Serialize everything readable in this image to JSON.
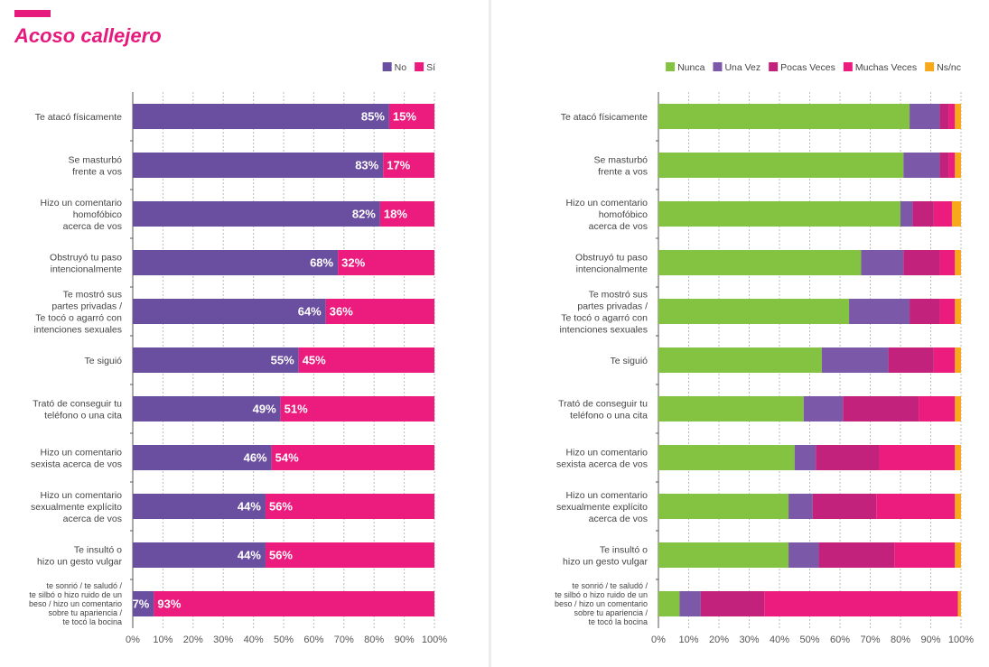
{
  "title": "Acoso callejero",
  "colors": {
    "accent": "#e6197d",
    "no": "#6a4fa0",
    "si": "#ec1c7f",
    "nunca": "#84c341",
    "una_vez": "#7b58a8",
    "pocas_veces": "#c2227c",
    "muchas_veces": "#ec1c7f",
    "nsnc": "#f7a81b"
  },
  "chart_data": [
    {
      "type": "bar",
      "orientation": "horizontal",
      "stacked": true,
      "categories": [
        [
          "Te atacó físicamente"
        ],
        [
          "Se masturbó",
          "frente a vos"
        ],
        [
          "Hizo un comentario",
          "homofóbico",
          "acerca de vos"
        ],
        [
          "Obstruyó tu paso",
          "intencionalmente"
        ],
        [
          "Te mostró sus",
          "partes privadas /",
          "Te tocó o agarró con",
          "intenciones sexuales"
        ],
        [
          "Te siguió"
        ],
        [
          "Trató de conseguir tu",
          "teléfono o una cita"
        ],
        [
          "Hizo un comentario",
          "sexista acerca de vos"
        ],
        [
          "Hizo un comentario",
          "sexualmente explícito",
          "acerca de vos"
        ],
        [
          "Te insultó o",
          "hizo un gesto vulgar"
        ],
        [
          "te sonrió / te saludó /",
          "te silbó o hizo ruido de un",
          "beso / hizo un comentario",
          "sobre tu apariencia /",
          "te tocó la bocina"
        ]
      ],
      "series": [
        {
          "name": "No",
          "color_key": "no",
          "values": [
            85,
            83,
            82,
            68,
            64,
            55,
            49,
            46,
            44,
            44,
            7
          ]
        },
        {
          "name": "Sí",
          "color_key": "si",
          "values": [
            15,
            17,
            18,
            32,
            36,
            45,
            51,
            54,
            56,
            56,
            93
          ]
        }
      ],
      "data_labels": true,
      "legend": [
        "No",
        "Sí"
      ],
      "legend_position": "top-right",
      "xlim": [
        0,
        100
      ],
      "xticks": [
        "0%",
        "10%",
        "20%",
        "30%",
        "40%",
        "50%",
        "60%",
        "70%",
        "80%",
        "90%",
        "100%"
      ]
    },
    {
      "type": "bar",
      "orientation": "horizontal",
      "stacked": true,
      "categories": [
        [
          "Te atacó físicamente"
        ],
        [
          "Se masturbó",
          "frente a vos"
        ],
        [
          "Hizo un comentario",
          "homofóbico",
          "acerca de vos"
        ],
        [
          "Obstruyó tu paso",
          "intencionalmente"
        ],
        [
          "Te mostró sus",
          "partes privadas /",
          "Te tocó o agarró con",
          "intenciones sexuales"
        ],
        [
          "Te siguió"
        ],
        [
          "Trató de conseguir tu",
          "teléfono o una cita"
        ],
        [
          "Hizo un comentario",
          "sexista acerca de vos"
        ],
        [
          "Hizo un comentario",
          "sexualmente explícito",
          "acerca de vos"
        ],
        [
          "Te insultó o",
          "hizo un gesto vulgar"
        ],
        [
          "te sonrió / te saludó /",
          "te silbó o hizo ruido de un",
          "beso / hizo un comentario",
          "sobre tu apariencia /",
          "te tocó la bocina"
        ]
      ],
      "series": [
        {
          "name": "Nunca",
          "color_key": "nunca",
          "values": [
            83,
            81,
            80,
            67,
            63,
            54,
            48,
            45,
            43,
            43,
            7
          ]
        },
        {
          "name": "Una Vez",
          "color_key": "una_vez",
          "values": [
            10,
            12,
            4,
            14,
            20,
            22,
            13,
            7,
            8,
            10,
            7
          ]
        },
        {
          "name": "Pocas Veces",
          "color_key": "pocas_veces",
          "values": [
            3,
            3,
            7,
            12,
            10,
            15,
            25,
            21,
            21,
            25,
            21
          ]
        },
        {
          "name": "Muchas Veces",
          "color_key": "muchas_veces",
          "values": [
            2,
            2,
            6,
            5,
            5,
            7,
            12,
            25,
            26,
            20,
            64
          ]
        },
        {
          "name": "Ns/nc",
          "color_key": "nsnc",
          "values": [
            2,
            2,
            3,
            2,
            2,
            2,
            2,
            2,
            2,
            2,
            1
          ]
        }
      ],
      "data_labels": false,
      "legend": [
        "Nunca",
        "Una Vez",
        "Pocas Veces",
        "Muchas Veces",
        "Ns/nc"
      ],
      "legend_position": "top-right",
      "xlim": [
        0,
        100
      ],
      "xticks": [
        "0%",
        "10%",
        "20%",
        "30%",
        "40%",
        "50%",
        "60%",
        "70%",
        "80%",
        "90%",
        "100%"
      ]
    }
  ]
}
